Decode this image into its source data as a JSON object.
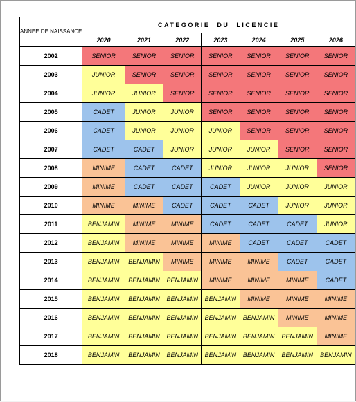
{
  "header": {
    "corner_label": "ANNEE DE NAISSANCE",
    "title": "CATEGORIE DU LICENCIE",
    "years": [
      "2020",
      "2021",
      "2022",
      "2023",
      "2024",
      "2025",
      "2026"
    ]
  },
  "rows": [
    {
      "birth": "2002",
      "cells": [
        "SENIOR",
        "SENIOR",
        "SENIOR",
        "SENIOR",
        "SENIOR",
        "SENIOR",
        "SENIOR"
      ]
    },
    {
      "birth": "2003",
      "cells": [
        "JUNIOR",
        "SENIOR",
        "SENIOR",
        "SENIOR",
        "SENIOR",
        "SENIOR",
        "SENIOR"
      ]
    },
    {
      "birth": "2004",
      "cells": [
        "JUNIOR",
        "JUNIOR",
        "SENIOR",
        "SENIOR",
        "SENIOR",
        "SENIOR",
        "SENIOR"
      ]
    },
    {
      "birth": "2005",
      "cells": [
        "CADET",
        "JUNIOR",
        "JUNIOR",
        "SENIOR",
        "SENIOR",
        "SENIOR",
        "SENIOR"
      ]
    },
    {
      "birth": "2006",
      "cells": [
        "CADET",
        "JUNIOR",
        "JUNIOR",
        "JUNIOR",
        "SENIOR",
        "SENIOR",
        "SENIOR"
      ]
    },
    {
      "birth": "2007",
      "cells": [
        "CADET",
        "CADET",
        "JUNIOR",
        "JUNIOR",
        "JUNIOR",
        "SENIOR",
        "SENIOR"
      ]
    },
    {
      "birth": "2008",
      "cells": [
        "MINIME",
        "CADET",
        "CADET",
        "JUNIOR",
        "JUNIOR",
        "JUNIOR",
        "SENIOR"
      ]
    },
    {
      "birth": "2009",
      "cells": [
        "MINIME",
        "CADET",
        "CADET",
        "CADET",
        "JUNIOR",
        "JUNIOR",
        "JUNIOR"
      ]
    },
    {
      "birth": "2010",
      "cells": [
        "MINIME",
        "MINIME",
        "CADET",
        "CADET",
        "CADET",
        "JUNIOR",
        "JUNIOR"
      ]
    },
    {
      "birth": "2011",
      "cells": [
        "BENJAMIN",
        "MINIME",
        "MINIME",
        "CADET",
        "CADET",
        "CADET",
        "JUNIOR"
      ]
    },
    {
      "birth": "2012",
      "cells": [
        "BENJAMIN",
        "MINIME",
        "MINIME",
        "MINIME",
        "CADET",
        "CADET",
        "CADET"
      ]
    },
    {
      "birth": "2013",
      "cells": [
        "BENJAMIN",
        "BENJAMIN",
        "MINIME",
        "MINIME",
        "MINIME",
        "CADET",
        "CADET"
      ]
    },
    {
      "birth": "2014",
      "cells": [
        "BENJAMIN",
        "BENJAMIN",
        "BENJAMIN",
        "MINIME",
        "MINIME",
        "MINIME",
        "CADET"
      ]
    },
    {
      "birth": "2015",
      "cells": [
        "BENJAMIN",
        "BENJAMIN",
        "BENJAMIN",
        "BENJAMIN",
        "MINIME",
        "MINIME",
        "MINIME"
      ]
    },
    {
      "birth": "2016",
      "cells": [
        "BENJAMIN",
        "BENJAMIN",
        "BENJAMIN",
        "BENJAMIN",
        "BENJAMIN",
        "MINIME",
        "MINIME"
      ]
    },
    {
      "birth": "2017",
      "cells": [
        "BENJAMIN",
        "BENJAMIN",
        "BENJAMIN",
        "BENJAMIN",
        "BENJAMIN",
        "BENJAMIN",
        "MINIME"
      ]
    },
    {
      "birth": "2018",
      "cells": [
        "BENJAMIN",
        "BENJAMIN",
        "BENJAMIN",
        "BENJAMIN",
        "BENJAMIN",
        "BENJAMIN",
        "BENJAMIN"
      ]
    }
  ],
  "colors": {
    "SENIOR": "#f4777a",
    "JUNIOR": "#ffff99",
    "CADET": "#9dc3ec",
    "MINIME": "#fac396",
    "BENJAMIN": "#ffff99"
  }
}
